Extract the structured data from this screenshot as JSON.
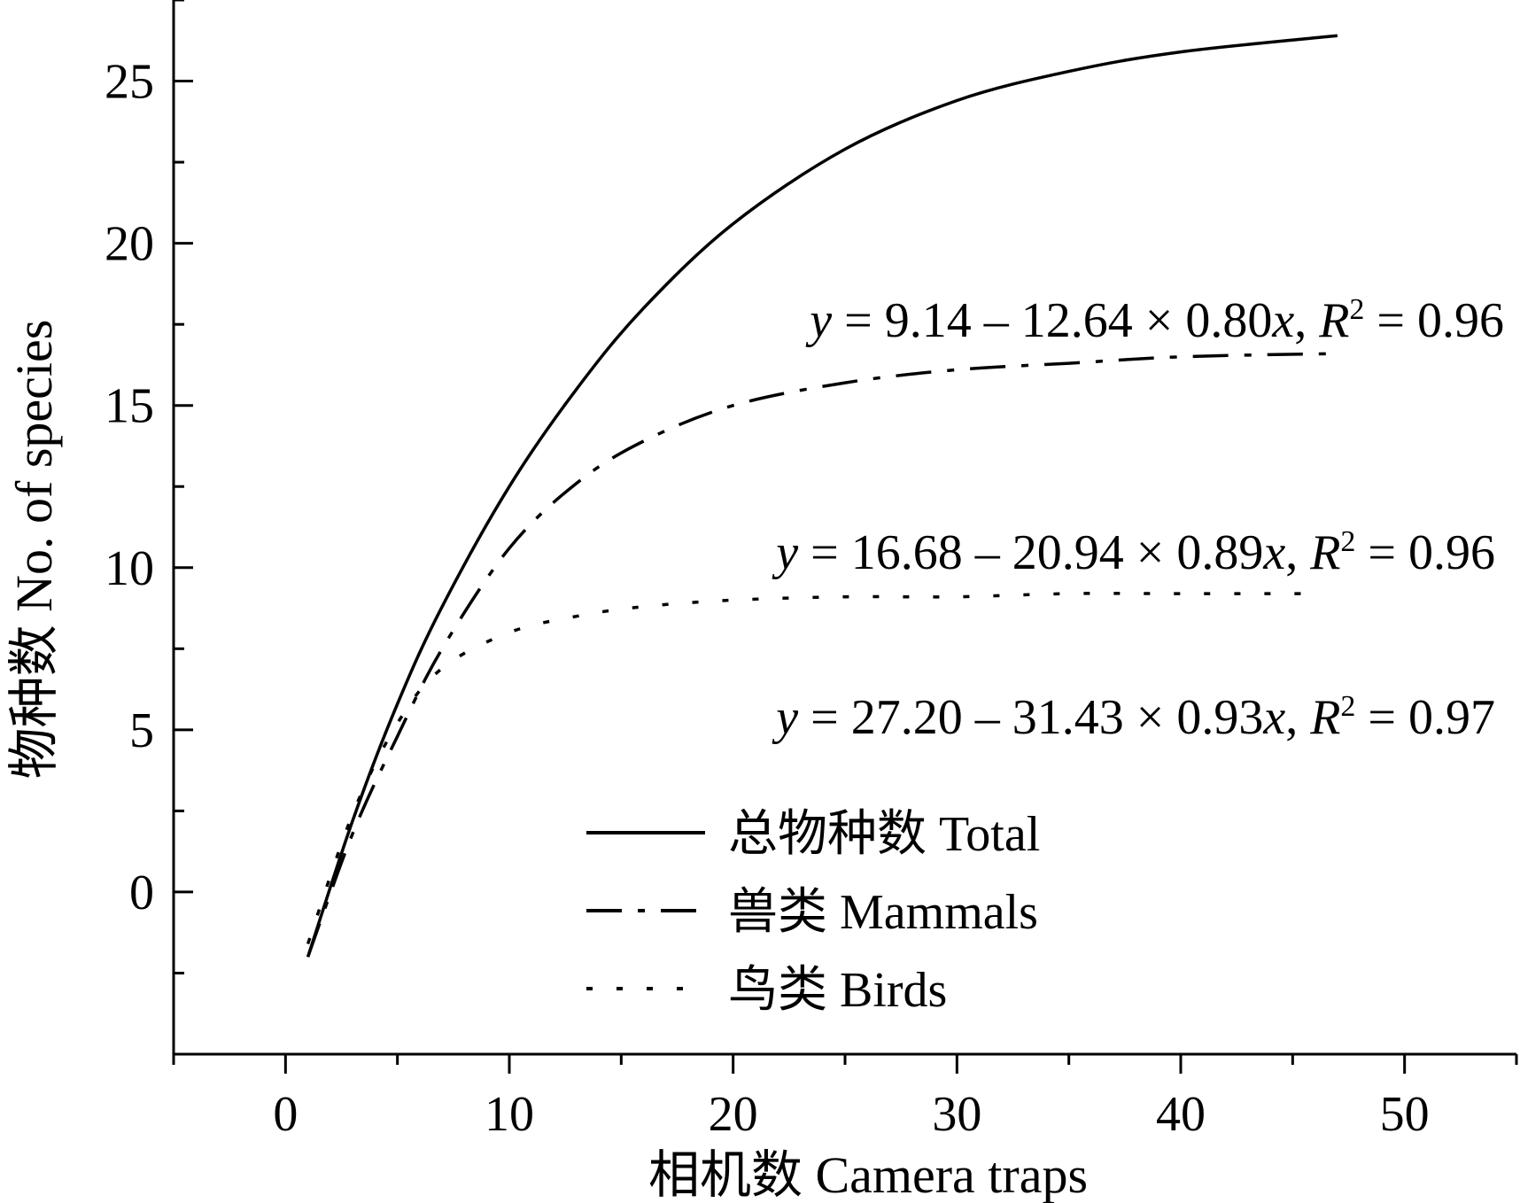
{
  "chart_data": {
    "type": "line",
    "xlabel": "相机数 Camera traps",
    "ylabel": "物种数 No. of species",
    "xlim": [
      -5,
      55
    ],
    "ylim": [
      -5,
      27.5
    ],
    "x_ticks": [
      0,
      10,
      20,
      30,
      40,
      50
    ],
    "y_ticks": [
      0,
      5,
      10,
      15,
      20,
      25
    ],
    "grid": false,
    "legend_position": "bottom-center",
    "series": [
      {
        "name": "总物种数 Total",
        "style": "solid",
        "x": [
          1,
          3,
          5,
          7,
          10,
          13,
          16,
          20,
          25,
          30,
          35,
          40,
          47
        ],
        "y": [
          -2,
          2.2,
          5.8,
          8.8,
          12.5,
          15.5,
          18.0,
          20.6,
          22.9,
          24.4,
          25.3,
          25.9,
          26.4
        ]
      },
      {
        "name": "兽类 Mammals",
        "style": "dashdot",
        "x": [
          1,
          3,
          5,
          7,
          10,
          13,
          16,
          20,
          25,
          30,
          35,
          40,
          47
        ],
        "y": [
          -2,
          1.8,
          4.8,
          7.5,
          10.6,
          12.6,
          13.9,
          15.0,
          15.7,
          16.1,
          16.3,
          16.5,
          16.6
        ]
      },
      {
        "name": "鸟类 Birds",
        "style": "dotted",
        "x": [
          1,
          3,
          5,
          7,
          10,
          13,
          16,
          20,
          25,
          30,
          35,
          40,
          45.5
        ],
        "y": [
          -1.6,
          2.4,
          5.2,
          6.9,
          8.0,
          8.5,
          8.8,
          9.0,
          9.1,
          9.1,
          9.2,
          9.2,
          9.2
        ]
      }
    ],
    "annotations": [
      {
        "pre": "",
        "y": "y",
        "mid": " = 9.14 – 12.64 × 0.80",
        "x": "x",
        "post": ", ",
        "R": "R",
        "sup": "2",
        "tail": " = 0.96"
      },
      {
        "pre": "",
        "y": "y",
        "mid": " = 16.68 – 20.94 × 0.89",
        "x": "x",
        "post": ", ",
        "R": "R",
        "sup": "2",
        "tail": " = 0.96"
      },
      {
        "pre": "",
        "y": "y",
        "mid": " = 27.20 – 31.43 × 0.93",
        "x": "x",
        "post": ", ",
        "R": "R",
        "sup": "2",
        "tail": " = 0.97"
      }
    ]
  }
}
